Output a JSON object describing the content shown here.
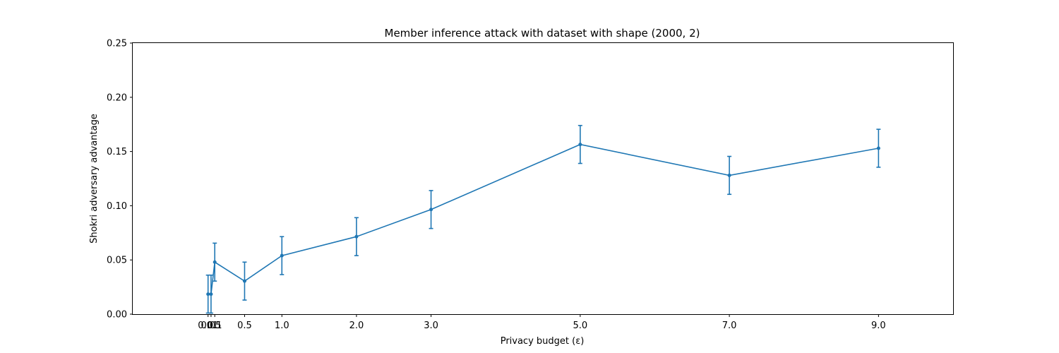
{
  "chart_data": {
    "type": "line",
    "title": "Member inference attack with dataset with shape (2000, 2)",
    "xlabel": "Privacy budget (ε)",
    "ylabel": "Shokri adversary advantage",
    "xlim": [
      -1.0,
      10.0
    ],
    "ylim": [
      0.0,
      0.25
    ],
    "x_ticks": [
      0.01,
      0.05,
      0.1,
      0.5,
      1.0,
      2.0,
      3.0,
      5.0,
      7.0,
      9.0
    ],
    "x_tick_labels": [
      "0.01",
      "0.05",
      "0.1",
      "0.5",
      "1.0",
      "2.0",
      "3.0",
      "5.0",
      "7.0",
      "9.0"
    ],
    "y_ticks": [
      0.0,
      0.05,
      0.1,
      0.15,
      0.2,
      0.25
    ],
    "y_tick_labels": [
      "0.00",
      "0.05",
      "0.10",
      "0.15",
      "0.20",
      "0.25"
    ],
    "grid": false,
    "color": "#1f77b4",
    "series": [
      {
        "x": [
          0.01,
          0.05,
          0.1,
          0.5,
          1.0,
          2.0,
          3.0,
          5.0,
          7.0,
          9.0
        ],
        "y": [
          0.0185,
          0.0185,
          0.048,
          0.0305,
          0.054,
          0.0715,
          0.0965,
          0.1565,
          0.128,
          0.153
        ],
        "err": [
          0.0175,
          0.0175,
          0.0175,
          0.0175,
          0.0175,
          0.0175,
          0.0175,
          0.0175,
          0.0175,
          0.0175
        ]
      }
    ]
  }
}
